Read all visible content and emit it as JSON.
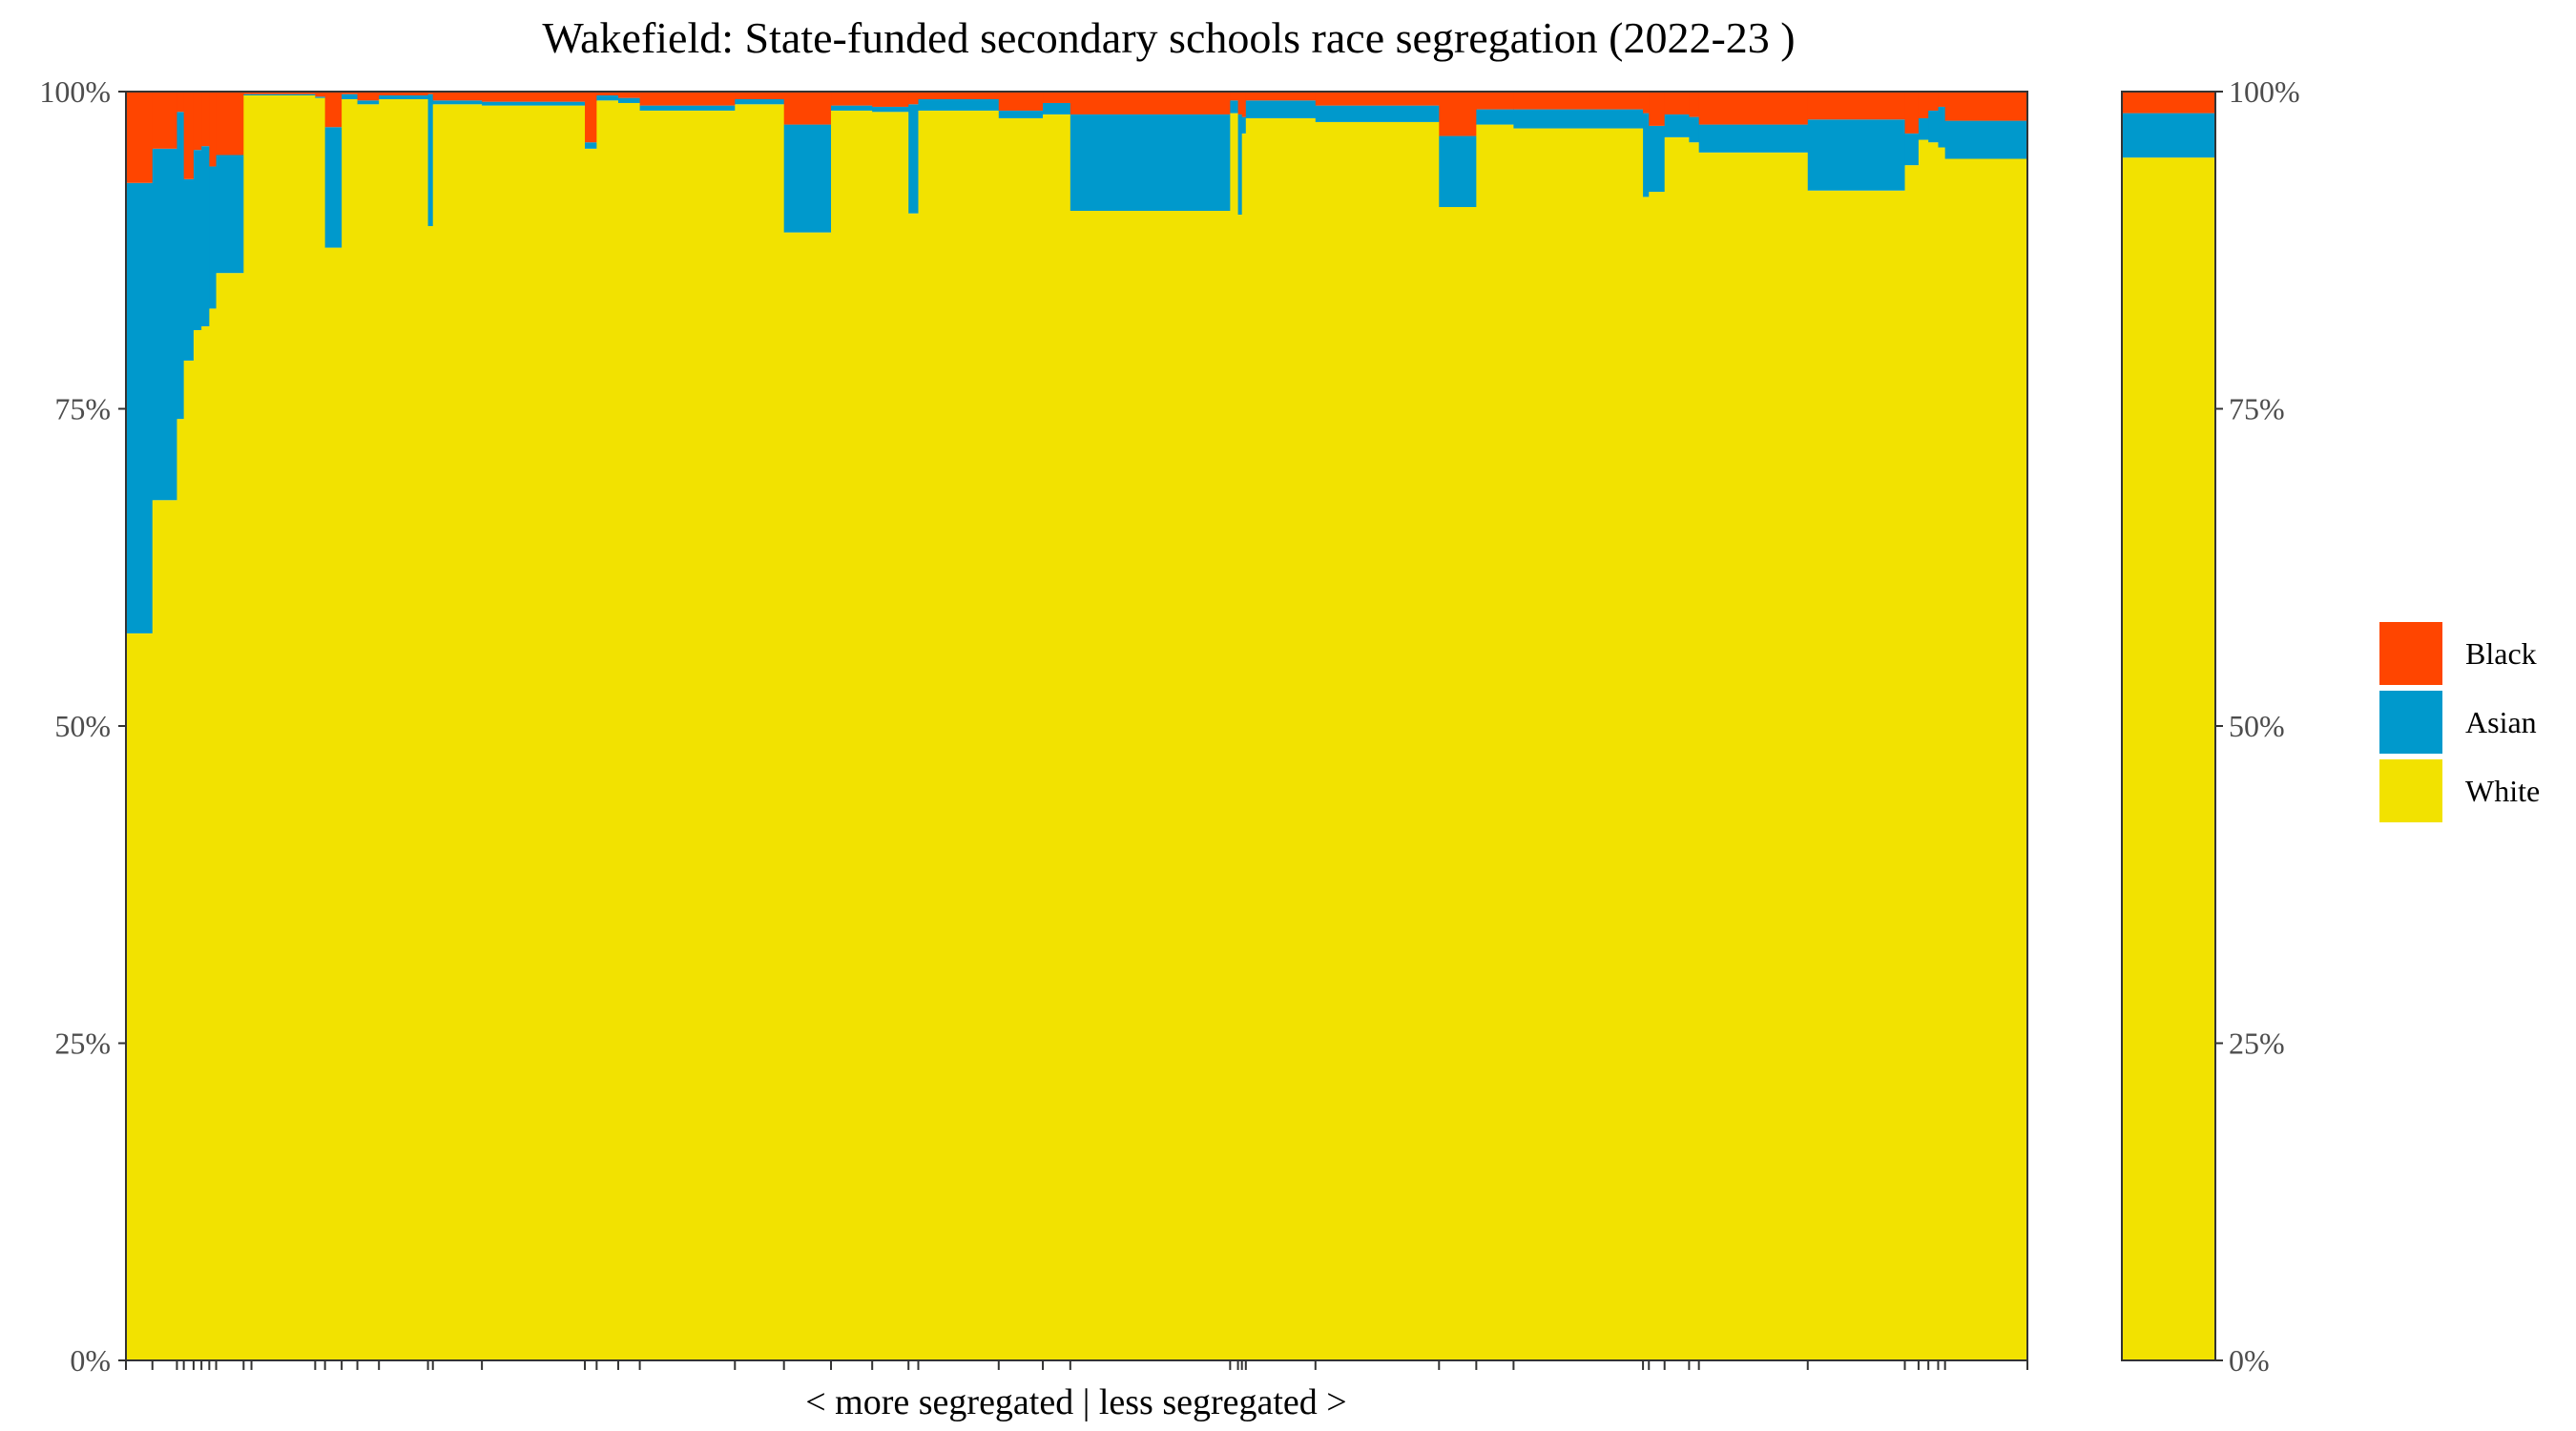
{
  "chart_data": {
    "type": "bar",
    "title": "Wakefield: State-funded secondary schools race segregation (2022-23 )",
    "xlabel": "< more segregated | less segregated >",
    "ylabel": "",
    "ylim": [
      0,
      1
    ],
    "y_ticks": [
      "0%",
      "25%",
      "50%",
      "75%",
      "100%"
    ],
    "grid": false,
    "stacked": true,
    "variable_width": true,
    "legend_position": "right",
    "series_order": [
      "White",
      "Asian",
      "Black"
    ],
    "colors": {
      "White": "#f2e200",
      "Asian": "#0099cc",
      "Black": "#ff4500"
    },
    "legend": [
      {
        "name": "Black",
        "color": "#ff4500"
      },
      {
        "name": "Asian",
        "color": "#0099cc"
      },
      {
        "name": "White",
        "color": "#f2e200"
      }
    ],
    "schools": [
      {
        "w": 27,
        "white": 0.573,
        "asian": 0.355,
        "black": 0.072
      },
      {
        "w": 25,
        "white": 0.678,
        "asian": 0.277,
        "black": 0.045
      },
      {
        "w": 7,
        "white": 0.742,
        "asian": 0.242,
        "black": 0.016
      },
      {
        "w": 10,
        "white": 0.788,
        "asian": 0.143,
        "black": 0.069
      },
      {
        "w": 8,
        "white": 0.812,
        "asian": 0.142,
        "black": 0.046
      },
      {
        "w": 8,
        "white": 0.815,
        "asian": 0.142,
        "black": 0.043
      },
      {
        "w": 7,
        "white": 0.829,
        "asian": 0.112,
        "black": 0.059
      },
      {
        "w": 28,
        "white": 0.857,
        "asian": 0.093,
        "black": 0.05
      },
      {
        "w": 8,
        "white": 0.997,
        "asian": 0.001,
        "black": 0.002
      },
      {
        "w": 65,
        "white": 0.997,
        "asian": 0.001,
        "black": 0.002
      },
      {
        "w": 10,
        "white": 0.995,
        "asian": 0.001,
        "black": 0.004
      },
      {
        "w": 17,
        "white": 0.877,
        "asian": 0.095,
        "black": 0.028
      },
      {
        "w": 16,
        "white": 0.994,
        "asian": 0.004,
        "black": 0.002
      },
      {
        "w": 22,
        "white": 0.99,
        "asian": 0.003,
        "black": 0.007
      },
      {
        "w": 50,
        "white": 0.994,
        "asian": 0.003,
        "black": 0.003
      },
      {
        "w": 5,
        "white": 0.894,
        "asian": 0.104,
        "black": 0.002
      },
      {
        "w": 50,
        "white": 0.99,
        "asian": 0.003,
        "black": 0.007
      },
      {
        "w": 105,
        "white": 0.989,
        "asian": 0.003,
        "black": 0.008
      },
      {
        "w": 12,
        "white": 0.955,
        "asian": 0.005,
        "black": 0.04
      },
      {
        "w": 22,
        "white": 0.993,
        "asian": 0.004,
        "black": 0.003
      },
      {
        "w": 22,
        "white": 0.991,
        "asian": 0.004,
        "black": 0.005
      },
      {
        "w": 97,
        "white": 0.985,
        "asian": 0.004,
        "black": 0.011
      },
      {
        "w": 50,
        "white": 0.99,
        "asian": 0.004,
        "black": 0.006
      },
      {
        "w": 48,
        "white": 0.889,
        "asian": 0.085,
        "black": 0.026
      },
      {
        "w": 42,
        "white": 0.985,
        "asian": 0.004,
        "black": 0.011
      },
      {
        "w": 37,
        "white": 0.984,
        "asian": 0.004,
        "black": 0.012
      },
      {
        "w": 10,
        "white": 0.904,
        "asian": 0.086,
        "black": 0.01
      },
      {
        "w": 82,
        "white": 0.985,
        "asian": 0.009,
        "black": 0.006
      },
      {
        "w": 45,
        "white": 0.979,
        "asian": 0.006,
        "black": 0.015
      },
      {
        "w": 28,
        "white": 0.982,
        "asian": 0.009,
        "black": 0.009
      },
      {
        "w": 163,
        "white": 0.906,
        "asian": 0.076,
        "black": 0.018
      },
      {
        "w": 8,
        "white": 0.983,
        "asian": 0.01,
        "black": 0.007
      },
      {
        "w": 4,
        "white": 0.903,
        "asian": 0.079,
        "black": 0.018
      },
      {
        "w": 4,
        "white": 0.967,
        "asian": 0.013,
        "black": 0.02
      },
      {
        "w": 71,
        "white": 0.979,
        "asian": 0.014,
        "black": 0.007
      },
      {
        "w": 126,
        "white": 0.976,
        "asian": 0.013,
        "black": 0.011
      },
      {
        "w": 38,
        "white": 0.909,
        "asian": 0.056,
        "black": 0.035
      },
      {
        "w": 38,
        "white": 0.974,
        "asian": 0.012,
        "black": 0.014
      },
      {
        "w": 132,
        "white": 0.971,
        "asian": 0.015,
        "black": 0.014
      },
      {
        "w": 6,
        "white": 0.917,
        "asian": 0.066,
        "black": 0.017
      },
      {
        "w": 16,
        "white": 0.921,
        "asian": 0.052,
        "black": 0.027
      },
      {
        "w": 25,
        "white": 0.964,
        "asian": 0.018,
        "black": 0.018
      },
      {
        "w": 10,
        "white": 0.96,
        "asian": 0.02,
        "black": 0.02
      },
      {
        "w": 111,
        "white": 0.952,
        "asian": 0.022,
        "black": 0.026
      },
      {
        "w": 99,
        "white": 0.922,
        "asian": 0.056,
        "black": 0.022
      },
      {
        "w": 14,
        "white": 0.942,
        "asian": 0.025,
        "black": 0.033
      },
      {
        "w": 10,
        "white": 0.962,
        "asian": 0.017,
        "black": 0.021
      },
      {
        "w": 10,
        "white": 0.96,
        "asian": 0.025,
        "black": 0.015
      },
      {
        "w": 7,
        "white": 0.956,
        "asian": 0.032,
        "black": 0.012
      },
      {
        "w": 84,
        "white": 0.947,
        "asian": 0.03,
        "black": 0.023
      }
    ],
    "total_bar": {
      "white": 0.948,
      "asian": 0.035,
      "black": 0.017
    }
  }
}
